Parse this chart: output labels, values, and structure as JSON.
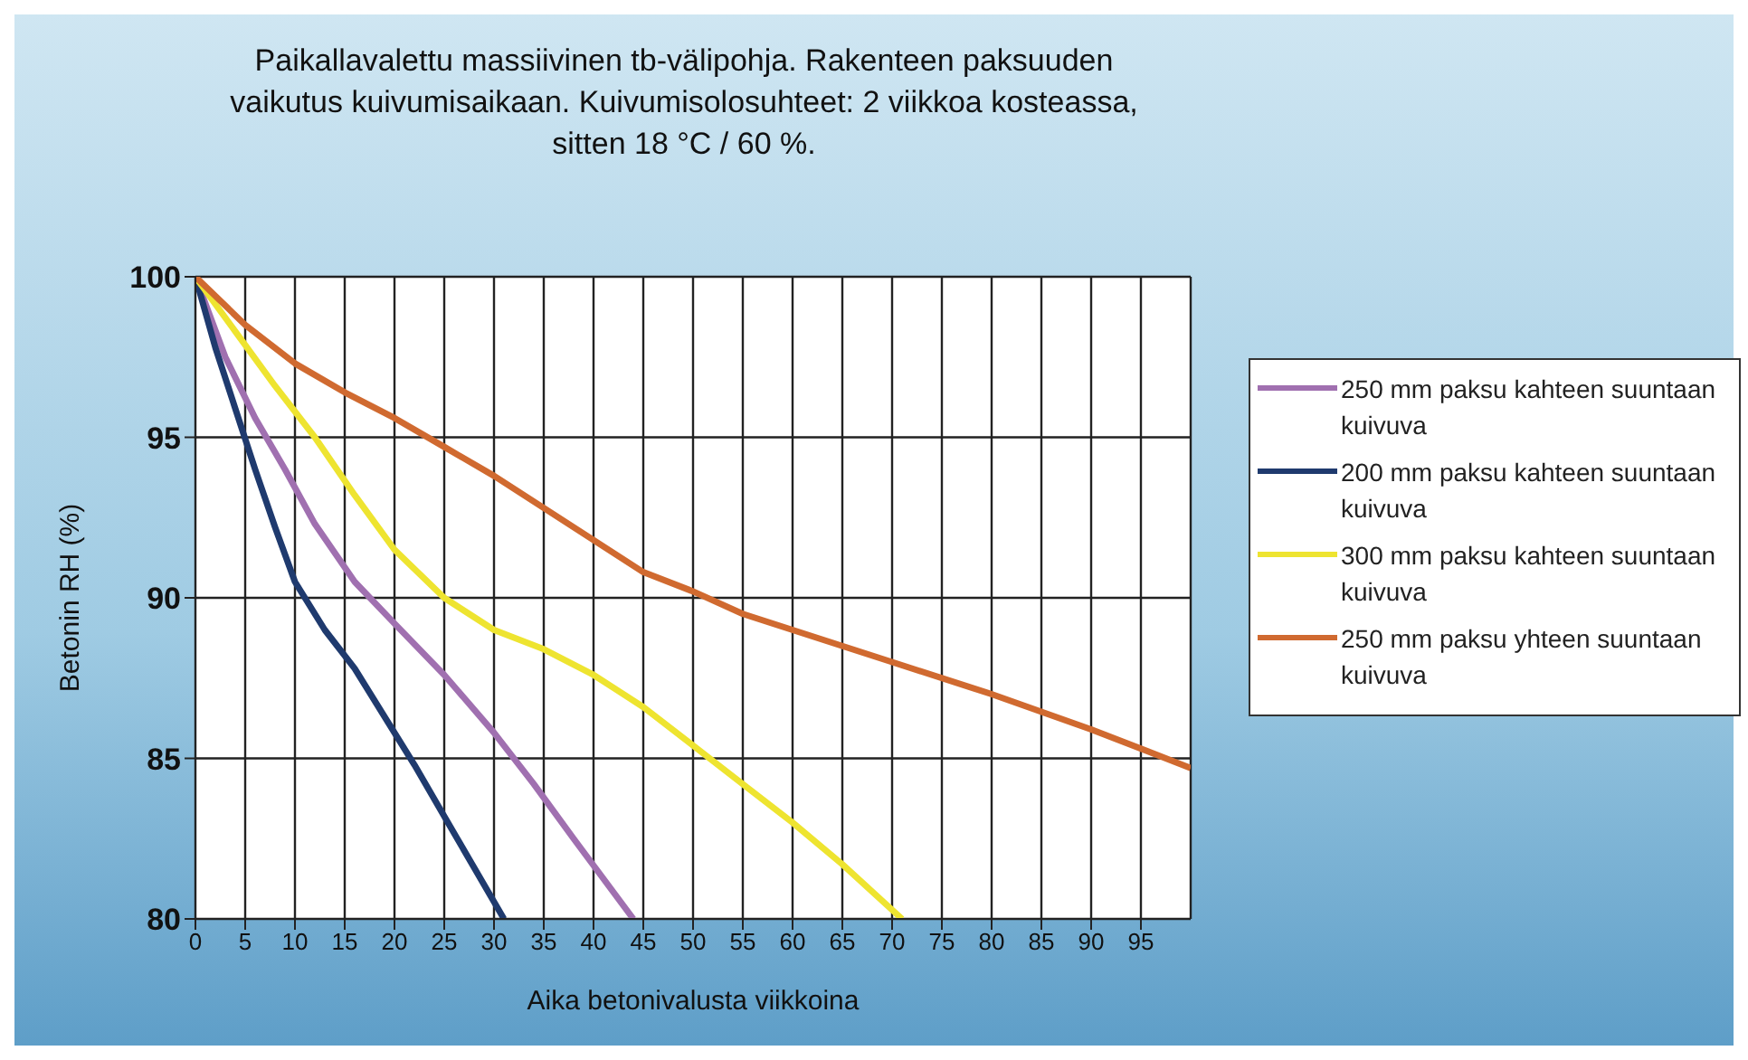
{
  "chart_data": {
    "type": "line",
    "title": "Paikallavalettu massiivinen tb-välipohja. Rakenteen paksuuden vaikutus kuivumisaikaan. Kuivumisolosuhteet: 2 viikkoa kosteassa, sitten 18 °C / 60 %.",
    "xlabel": "Aika betonivalusta viikkoina",
    "ylabel": "Betonin RH (%)",
    "xlim": [
      0,
      100
    ],
    "xticks": [
      0,
      5,
      10,
      15,
      20,
      25,
      30,
      35,
      40,
      45,
      50,
      55,
      60,
      65,
      70,
      75,
      80,
      85,
      90,
      95
    ],
    "ylim": [
      80,
      100
    ],
    "yticks": [
      80,
      85,
      90,
      95,
      100
    ],
    "grid": true,
    "legend": "right",
    "marker": "none",
    "line_style": "solid",
    "series": [
      {
        "name": "250 mm paksu kahteen suuntaan kuivuva",
        "color": "#a070b0",
        "x": [
          0,
          3,
          6,
          9,
          12,
          16,
          20,
          25,
          30,
          34,
          38,
          44
        ],
        "values": [
          100,
          97.5,
          95.6,
          94,
          92.3,
          90.5,
          89.2,
          87.6,
          85.8,
          84.2,
          82.5,
          80
        ]
      },
      {
        "name": "200 mm paksu kahteen suuntaan kuivuva",
        "color": "#1f3a6e",
        "x": [
          0,
          2,
          4,
          6,
          8,
          10,
          13,
          16,
          19,
          22,
          25,
          28,
          31
        ],
        "values": [
          100,
          97.8,
          95.9,
          94,
          92.2,
          90.5,
          89,
          87.8,
          86.3,
          84.8,
          83.2,
          81.6,
          80
        ]
      },
      {
        "name": "300 mm paksu kahteen suuntaan kuivuva",
        "color": "#eee430",
        "x": [
          0,
          4,
          8,
          12,
          16,
          20,
          25,
          30,
          35,
          40,
          45,
          50,
          55,
          60,
          65,
          71
        ],
        "values": [
          100,
          98.3,
          96.6,
          95,
          93.2,
          91.5,
          90,
          89,
          88.4,
          87.6,
          86.6,
          85.4,
          84.2,
          83,
          81.7,
          80
        ]
      },
      {
        "name": "250 mm paksu yhteen suuntaan kuivuva",
        "color": "#d06a30",
        "x": [
          0,
          5,
          10,
          15,
          20,
          25,
          30,
          35,
          40,
          45,
          50,
          55,
          60,
          70,
          80,
          90,
          100
        ],
        "values": [
          100,
          98.5,
          97.3,
          96.4,
          95.6,
          94.7,
          93.8,
          92.8,
          91.8,
          90.8,
          90.2,
          89.5,
          89,
          88,
          87,
          85.9,
          84.7
        ]
      }
    ]
  }
}
